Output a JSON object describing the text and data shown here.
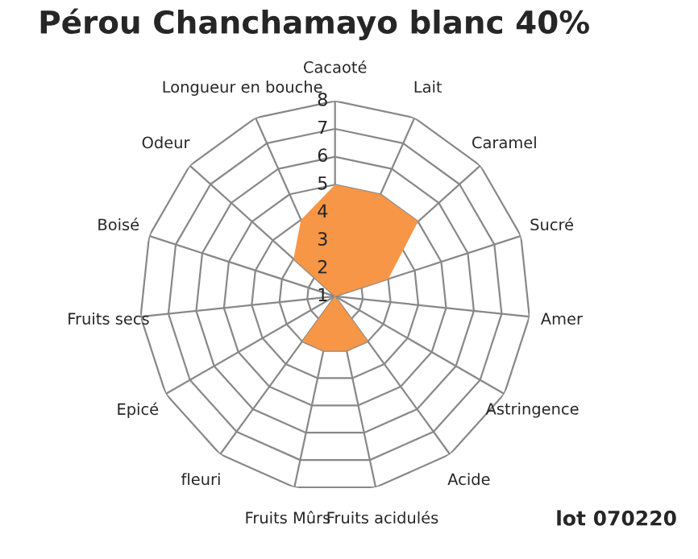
{
  "chart_data": {
    "type": "radar",
    "title": "Pérou Chanchamayo blanc 40%",
    "categories": [
      "Cacaoté",
      "Lait",
      "Caramel",
      "Sucré",
      "Amer",
      "Astringence",
      "Acide",
      "Fruits acidulés",
      "Fruits Mûrs",
      "fleuri",
      "Epicé",
      "Fruits secs",
      "Boisé",
      "Odeur",
      "Longueur en bouche"
    ],
    "series": [
      {
        "color": "#f79646",
        "values": [
          5,
          5,
          5,
          3,
          1,
          1,
          3,
          3,
          3,
          3,
          1,
          1,
          1,
          3,
          4
        ]
      }
    ],
    "ylim": [
      1,
      8
    ],
    "yticks": [
      1,
      2,
      3,
      4,
      5,
      6,
      7,
      8
    ],
    "grid": true,
    "legend": false,
    "annotations": [
      "lot 070220"
    ]
  }
}
